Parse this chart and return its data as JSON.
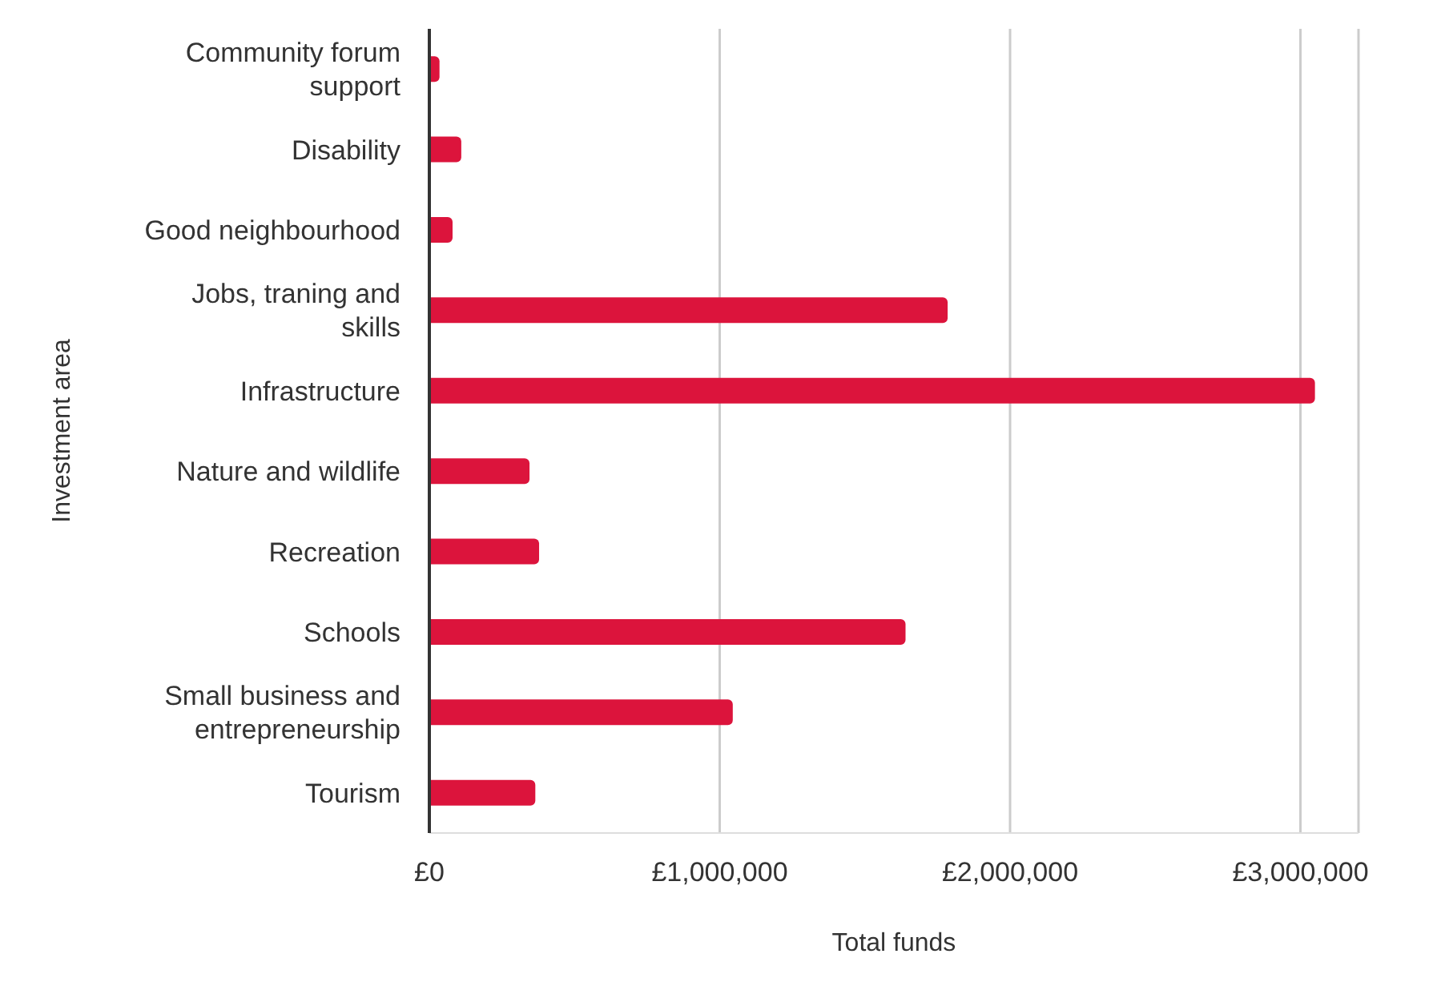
{
  "chart_data": {
    "type": "bar",
    "orientation": "horizontal",
    "xlabel": "Total funds",
    "ylabel": "Investment area",
    "categories": [
      "Community forum support",
      "Disability",
      "Good neighbourhood",
      "Jobs, traning and skills",
      "Infrastructure",
      "Nature and wildlife",
      "Recreation",
      "Schools",
      "Small business and entrepreneurship",
      "Tourism"
    ],
    "values": [
      35000,
      110000,
      80000,
      1785000,
      3050000,
      345000,
      378000,
      1640000,
      1045000,
      365000
    ],
    "color": "#dc143c",
    "xlim": [
      0,
      3200000
    ],
    "xticks": [
      {
        "value": 0,
        "label": "£0"
      },
      {
        "value": 1000000,
        "label": "£1,000,000"
      },
      {
        "value": 2000000,
        "label": "£2,000,000"
      },
      {
        "value": 3000000,
        "label": "£3,000,000"
      }
    ],
    "grid": "x",
    "legend": false
  }
}
